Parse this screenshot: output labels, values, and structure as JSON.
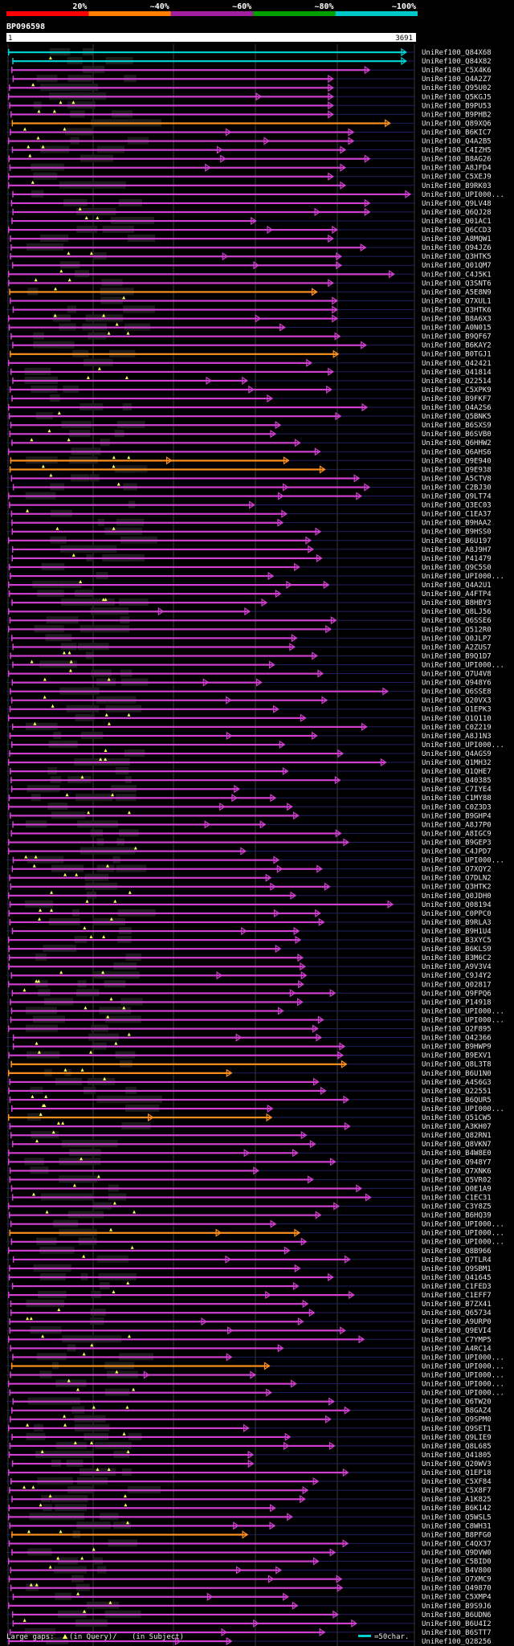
{
  "chart_data": {
    "type": "alignment-overview",
    "query_id": "BP096598",
    "query_length": 3691,
    "ruler": {
      "start": "1",
      "end": "3691"
    },
    "identity_legend": [
      {
        "label": "20%",
        "color": "#ff0000"
      },
      {
        "label": "~40%",
        "color": "#ff8000"
      },
      {
        "label": "~60%",
        "color": "#a020a0"
      },
      {
        "label": "~80%",
        "color": "#00a000"
      },
      {
        "label": "~100%",
        "color": "#00c8c8"
      }
    ],
    "footer": {
      "gaps_label": "Large gaps:",
      "query_gap_label": "(in Query)/",
      "subject_gap_label": "(in Subject)",
      "scale_label": "=50char."
    },
    "colors": {
      "cyan": "#00d0d0",
      "magenta": "#d040d0",
      "orange": "#ff9020",
      "gap_marker": "#ffff60"
    },
    "hits": [
      "UniRef100_Q84X68",
      "UniRef100_Q84X82",
      "UniRef100_C5X4K6",
      "UniRef100_Q4A2Z7",
      "UniRef100_Q95U02",
      "UniRef100_Q5KGJ5",
      "UniRef100_B9PU53",
      "UniRef100_B9PHB2",
      "UniRef100_Q89XQ6",
      "UniRef100_B6KIC7",
      "UniRef100_Q4A2B5",
      "UniRef100_C4IZH5",
      "UniRef100_B8AG26",
      "UniRef100_A8JFD4",
      "UniRef100_C5XEJ9",
      "UniRef100_B9RK03",
      "UniRef100_UPI000...",
      "UniRef100_Q9LV48",
      "UniRef100_Q6QJ28",
      "UniRef100_Q01AC1",
      "UniRef100_Q6CCD3",
      "UniRef100_A8MQW1",
      "UniRef100_Q94JZ6",
      "UniRef100_Q3HTK5",
      "UniRef100_Q01QM7",
      "UniRef100_C4J5K1",
      "UniRef100_Q3SNT6",
      "UniRef100_A5E8N9",
      "UniRef100_Q7XUL1",
      "UniRef100_Q3HTK6",
      "UniRef100_B8A6X3",
      "UniRef100_A0N015",
      "UniRef100_B9QF67",
      "UniRef100_B6KAY2",
      "UniRef100_B0TGJ1",
      "UniRef100_Q42421",
      "UniRef100_Q41814",
      "UniRef100_Q22514",
      "UniRef100_C5XPK9",
      "UniRef100_B9FKF7",
      "UniRef100_Q4A2S6",
      "UniRef100_Q5BNK5",
      "UniRef100_B6SXS9",
      "UniRef100_B6SVB0",
      "UniRef100_Q6HHW2",
      "UniRef100_Q6AHS6",
      "UniRef100_Q9E940",
      "UniRef100_Q9E938",
      "UniRef100_A5CTV8",
      "UniRef100_C2BJ30",
      "UniRef100_Q9LT74",
      "UniRef100_Q3EC03",
      "UniRef100_C1EA37",
      "UniRef100_B9HAA2",
      "UniRef100_B9HSS0",
      "UniRef100_B6U197",
      "UniRef100_A8J9H7",
      "UniRef100_P41479",
      "UniRef100_Q9C5S0",
      "UniRef100_UPI000...",
      "UniRef100_Q4A2U1",
      "UniRef100_A4FTP4",
      "UniRef100_B8HBY3",
      "UniRef100_Q8LJ56",
      "UniRef100_Q6SSE6",
      "UniRef100_Q512R0",
      "UniRef100_Q0JLP7",
      "UniRef100_A2ZUS7",
      "UniRef100_B9Q1D7",
      "UniRef100_UPI000...",
      "UniRef100_Q7U4V8",
      "UniRef100_Q948Y6",
      "UniRef100_Q6SSE8",
      "UniRef100_Q20VX3",
      "UniRef100_Q1EPK3",
      "UniRef100_Q1Q110",
      "UniRef100_C0Z219",
      "UniRef100_A8J1N3",
      "UniRef100_UPI000...",
      "UniRef100_Q4AGS9",
      "UniRef100_Q1MH32",
      "UniRef100_Q1QHE7",
      "UniRef100_Q40385",
      "UniRef100_C7IYE4",
      "UniRef100_C1MY88",
      "UniRef100_C0Z3D3",
      "UniRef100_B9GHP4",
      "UniRef100_A8J7P0",
      "UniRef100_A8IGC9",
      "UniRef100_B9GEP3",
      "UniRef100_C4JPD7",
      "UniRef100_UPI000...",
      "UniRef100_Q7XQY2",
      "UniRef100_Q7DLN2",
      "UniRef100_Q3HTK2",
      "UniRef100_Q0JDH0",
      "UniRef100_Q08194",
      "UniRef100_C0PPC0",
      "UniRef100_B9RLA3",
      "UniRef100_B9H1U4",
      "UniRef100_B3XYC5",
      "UniRef100_B6KLS9",
      "UniRef100_B3M6C2",
      "UniRef100_A9V3V4",
      "UniRef100_C9J4Y2",
      "UniRef100_Q02817",
      "UniRef100_Q9FPQ6",
      "UniRef100_P14918",
      "UniRef100_UPI000...",
      "UniRef100_UPI000...",
      "UniRef100_Q2F895",
      "UniRef100_Q42366",
      "UniRef100_B9HWP9",
      "UniRef100_B9EXV1",
      "UniRef100_Q8L3T8",
      "UniRef100_B6U1N0",
      "UniRef100_A4S6G3",
      "UniRef100_Q22551",
      "UniRef100_B6QUR5",
      "UniRef100_UPI000...",
      "UniRef100_Q51CW5",
      "UniRef100_A3KH07",
      "UniRef100_Q82RN1",
      "UniRef100_Q8VKN7",
      "UniRef100_B4W8E0",
      "UniRef100_Q948Y7",
      "UniRef100_Q7XNK6",
      "UniRef100_Q5VR02",
      "UniRef100_Q0E1A9",
      "UniRef100_C1EC31",
      "UniRef100_C3Y8Z5",
      "UniRef100_B6HQ39",
      "UniRef100_UPI000...",
      "UniRef100_UPI000...",
      "UniRef100_UPI000...",
      "UniRef100_Q8B966",
      "UniRef100_Q7TLR4",
      "UniRef100_Q9SBM1",
      "UniRef100_Q41645",
      "UniRef100_C1FED3",
      "UniRef100_C1EFF7",
      "UniRef100_B7ZX41",
      "UniRef100_Q65734",
      "UniRef100_A9URP0",
      "UniRef100_Q9EVI4",
      "UniRef100_C7YMP5",
      "UniRef100_A4RC14",
      "UniRef100_UPI000...",
      "UniRef100_UPI000...",
      "UniRef100_UPI000...",
      "UniRef100_UPI000...",
      "UniRef100_UPI000...",
      "UniRef100_Q6TW20",
      "UniRef100_B8GAZ4",
      "UniRef100_Q9SPM0",
      "UniRef100_Q9SET1",
      "UniRef100_Q9LIE9",
      "UniRef100_Q8L685",
      "UniRef100_Q41805",
      "UniRef100_Q20WV3",
      "UniRef100_Q1EP18",
      "UniRef100_C5XF84",
      "UniRef100_C5X8F7",
      "UniRef100_A1K825",
      "UniRef100_B6K142",
      "UniRef100_Q5WSL5",
      "UniRef100_C8WH31",
      "UniRef100_B8PFG0",
      "UniRef100_C4QX37",
      "UniRef100_Q9DVW0",
      "UniRef100_C5BID0",
      "UniRef100_B4V800",
      "UniRef100_Q7XMC9",
      "UniRef100_Q49870",
      "UniRef100_C5XMP4",
      "UniRef100_B9S9J6",
      "UniRef100_B6UDN6",
      "UniRef100_B6U4I2",
      "UniRef100_B6STT7",
      "UniRef100_Q28256"
    ]
  }
}
